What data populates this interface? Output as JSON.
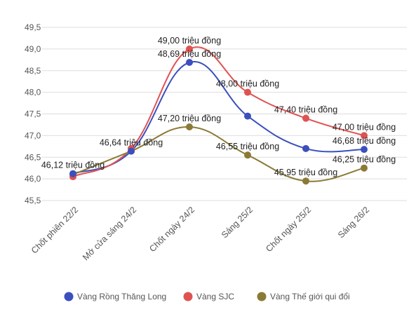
{
  "chart_data": {
    "type": "line",
    "title": "",
    "xlabel": "",
    "ylabel": "",
    "categories": [
      "Chốt phiên 22/2",
      "Mở cửa sáng 24/2",
      "Chốt ngày 24/2",
      "Sáng 25/2",
      "Chốt ngày 25/2",
      "Sáng 26/2"
    ],
    "y_ticks": [
      "49,5",
      "49,0",
      "48,5",
      "48,0",
      "47,5",
      "47,0",
      "46,5",
      "46,0",
      "45,5"
    ],
    "ylim": [
      45.5,
      49.5
    ],
    "grid": true,
    "legend_position": "bottom",
    "series": [
      {
        "name": "Vàng Rồng Thăng Long",
        "color": "#3b4fbf",
        "values": [
          46.12,
          46.64,
          48.69,
          47.45,
          46.7,
          46.68
        ],
        "labels": [
          "46,12 triệu đồng",
          "",
          "48,69 triệu đồng",
          "",
          "",
          "46,68 triệu đồng"
        ]
      },
      {
        "name": "Vàng SJC",
        "color": "#e05252",
        "values": [
          46.05,
          46.7,
          49.0,
          48.0,
          47.4,
          47.0
        ],
        "labels": [
          "",
          "",
          "49,00 triệu đồng",
          "48,00 triệu đồng",
          "47,40 triệu đồng",
          "47,00 triệu đồng"
        ]
      },
      {
        "name": "Vàng Thế giới qui đổi",
        "color": "#8a7a35",
        "values": [
          46.1,
          46.64,
          47.2,
          46.55,
          45.95,
          46.25
        ],
        "labels": [
          "",
          "46,64 triệu đồng",
          "47,20 triệu đồng",
          "46,55 triệu đồng",
          "45,95 triệu đồng",
          "46,25 triệu đồng"
        ]
      }
    ]
  }
}
